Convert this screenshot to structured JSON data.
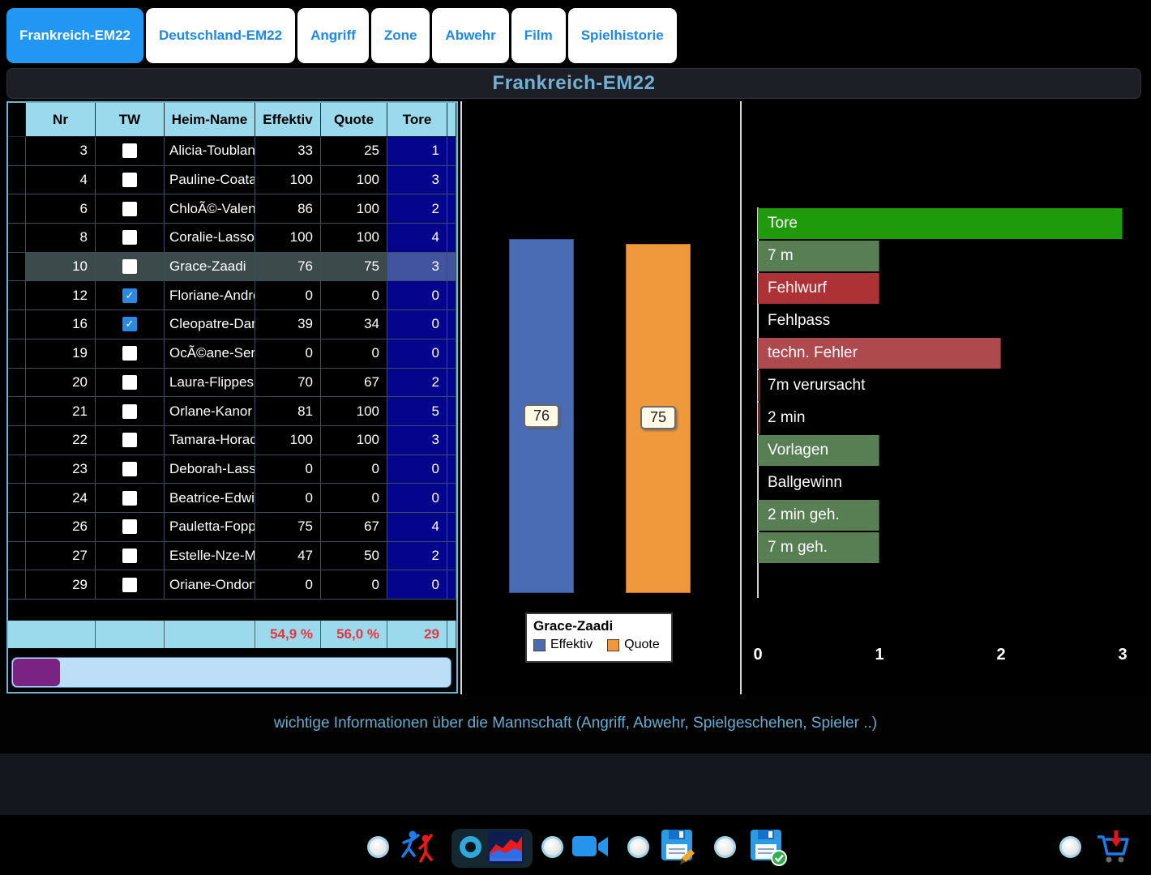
{
  "tabs": [
    {
      "label": "Frankreich-EM22",
      "active": true
    },
    {
      "label": "Deutschland-EM22",
      "active": false
    },
    {
      "label": "Angriff",
      "active": false
    },
    {
      "label": "Zone",
      "active": false
    },
    {
      "label": "Abwehr",
      "active": false
    },
    {
      "label": "Film",
      "active": false
    },
    {
      "label": "Spielhistorie",
      "active": false
    }
  ],
  "title": "Frankreich-EM22",
  "table": {
    "columns": [
      "Nr",
      "TW",
      "Heim-Name",
      "Effektiv",
      "Quote",
      "Tore"
    ],
    "rows": [
      {
        "nr": "3",
        "tw": false,
        "name": "Alicia-Toublanc",
        "eff": "33",
        "quote": "25",
        "tore": "1",
        "selected": false
      },
      {
        "nr": "4",
        "tw": false,
        "name": "Pauline-Coatane",
        "eff": "100",
        "quote": "100",
        "tore": "3",
        "selected": false
      },
      {
        "nr": "6",
        "tw": false,
        "name": "ChloÃ©-Valenti",
        "eff": "86",
        "quote": "100",
        "tore": "2",
        "selected": false
      },
      {
        "nr": "8",
        "tw": false,
        "name": "Coralie-Lassour",
        "eff": "100",
        "quote": "100",
        "tore": "4",
        "selected": false
      },
      {
        "nr": "10",
        "tw": false,
        "name": "Grace-Zaadi",
        "eff": "76",
        "quote": "75",
        "tore": "3",
        "selected": true
      },
      {
        "nr": "12",
        "tw": true,
        "name": "Floriane-Andre",
        "eff": "0",
        "quote": "0",
        "tore": "0",
        "selected": false
      },
      {
        "nr": "16",
        "tw": true,
        "name": "Cleopatre-Darle",
        "eff": "39",
        "quote": "34",
        "tore": "0",
        "selected": false
      },
      {
        "nr": "19",
        "tw": false,
        "name": "OcÃ©ane-Serci",
        "eff": "0",
        "quote": "0",
        "tore": "0",
        "selected": false
      },
      {
        "nr": "20",
        "tw": false,
        "name": "Laura-Flippes",
        "eff": "70",
        "quote": "67",
        "tore": "2",
        "selected": false
      },
      {
        "nr": "21",
        "tw": false,
        "name": "Orlane-Kanor",
        "eff": "81",
        "quote": "100",
        "tore": "5",
        "selected": false
      },
      {
        "nr": "22",
        "tw": false,
        "name": "Tamara-Horacel",
        "eff": "100",
        "quote": "100",
        "tore": "3",
        "selected": false
      },
      {
        "nr": "23",
        "tw": false,
        "name": "Deborah-Lassou",
        "eff": "0",
        "quote": "0",
        "tore": "0",
        "selected": false
      },
      {
        "nr": "24",
        "tw": false,
        "name": "Beatrice-Edwige",
        "eff": "0",
        "quote": "0",
        "tore": "0",
        "selected": false
      },
      {
        "nr": "26",
        "tw": false,
        "name": "Pauletta-Foppa",
        "eff": "75",
        "quote": "67",
        "tore": "4",
        "selected": false
      },
      {
        "nr": "27",
        "tw": false,
        "name": "Estelle-Nze-Mir",
        "eff": "47",
        "quote": "50",
        "tore": "2",
        "selected": false
      },
      {
        "nr": "29",
        "tw": false,
        "name": "Oriane-Ondonc",
        "eff": "0",
        "quote": "0",
        "tore": "0",
        "selected": false
      }
    ],
    "footer": {
      "eff": "54,9 %",
      "quote": "56,0 %",
      "tore": "29"
    },
    "check_glyph": "✓"
  },
  "chart_data": [
    {
      "type": "bar",
      "title": "Grace-Zaadi",
      "categories": [
        "Effektiv",
        "Quote"
      ],
      "values": [
        76,
        75
      ],
      "colors": [
        "#4a6cb4",
        "#f0993c"
      ],
      "ylim": [
        0,
        100
      ],
      "legend_position": "bottom",
      "data_labels": true
    },
    {
      "type": "bar",
      "orientation": "horizontal",
      "categories": [
        "Tore",
        "7 m",
        "Fehlwurf",
        "Fehlpass",
        "techn. Fehler",
        "7m verursacht",
        "2 min",
        "Vorlagen",
        "Ballgewinn",
        "2 min geh.",
        "7 m geh."
      ],
      "values": [
        3,
        1,
        1,
        0,
        2,
        0,
        0,
        1,
        0,
        1,
        1
      ],
      "colors": [
        "#1f9a0a",
        "#587f54",
        "#ad3236",
        "#000000",
        "#ae4a4e",
        "#7a2525",
        "#7a2525",
        "#587f54",
        "#000000",
        "#587f54",
        "#587f54"
      ],
      "xlim": [
        0,
        3
      ],
      "xticks": [
        "0",
        "1",
        "2",
        "3"
      ],
      "grid": false
    }
  ],
  "info_text": "wichtige Informationen über die Mannschaft (Angriff, Abwehr, Spielgeschehen, Spieler ..)",
  "toolbar": {
    "radios": [
      {
        "selected": false
      },
      {
        "selected": true
      },
      {
        "selected": false
      },
      {
        "selected": false
      },
      {
        "selected": false
      },
      {
        "selected": false
      }
    ],
    "icons": [
      "players-icon",
      "area-chart-icon",
      "video-camera-icon",
      "save-edit-icon",
      "save-confirm-icon",
      "cart-download-icon"
    ]
  },
  "colors": {
    "accent_blue": "#2196f3",
    "header_lightblue": "#9bd9ec",
    "tore_navy": "#04048c",
    "footer_red": "#e63540",
    "scroll_thumb_purple": "#7b2383"
  }
}
